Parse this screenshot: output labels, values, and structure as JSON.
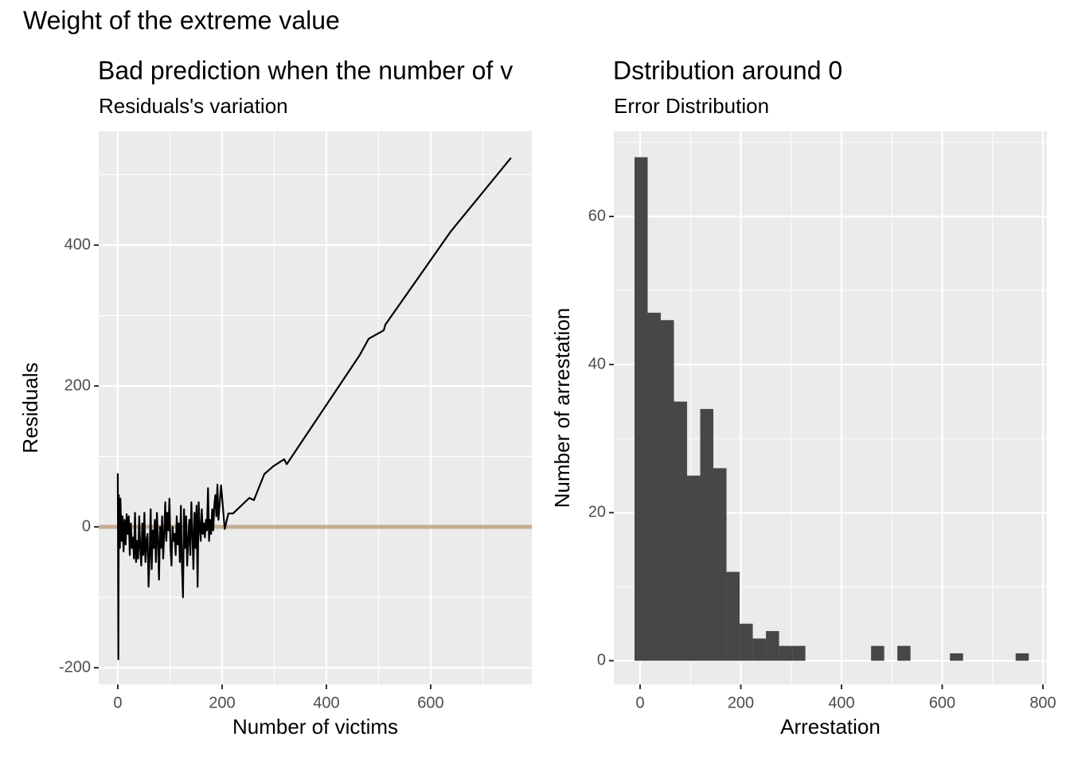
{
  "title": "Weight of the extreme value",
  "chart_data": [
    {
      "type": "line",
      "title": "Bad prediction when the number of v",
      "subtitle": "Residuals's variation",
      "x_label": "Number of victims",
      "y_label": "Residuals",
      "x": [
        0,
        1,
        2,
        4,
        5,
        7,
        9,
        11,
        13,
        15,
        17,
        19,
        21,
        23,
        25,
        27,
        29,
        31,
        33,
        35,
        37,
        39,
        41,
        43,
        45,
        47,
        49,
        51,
        53,
        55,
        57,
        59,
        61,
        63,
        65,
        67,
        69,
        71,
        73,
        75,
        77,
        79,
        81,
        83,
        85,
        87,
        89,
        91,
        93,
        95,
        97,
        99,
        101,
        103,
        105,
        107,
        109,
        111,
        113,
        115,
        117,
        119,
        121,
        123,
        125,
        127,
        129,
        131,
        133,
        135,
        137,
        139,
        141,
        143,
        145,
        147,
        149,
        151,
        153,
        155,
        157,
        159,
        161,
        163,
        165,
        167,
        169,
        171,
        173,
        175,
        177,
        179,
        181,
        183,
        185,
        187,
        189,
        191,
        193,
        198,
        205,
        212,
        221,
        252,
        261,
        281,
        298,
        319,
        324,
        464,
        481,
        510,
        513,
        638,
        754
      ],
      "values": [
        76,
        -188,
        45,
        -30,
        40,
        -20,
        15,
        -35,
        10,
        -25,
        18,
        -10,
        15,
        -40,
        5,
        -30,
        -15,
        -45,
        20,
        -50,
        -20,
        -45,
        15,
        -30,
        -55,
        5,
        -40,
        20,
        -50,
        -20,
        -10,
        -85,
        -40,
        25,
        -60,
        -5,
        -30,
        10,
        -50,
        20,
        -20,
        -75,
        0,
        -30,
        15,
        -45,
        -10,
        35,
        -20,
        20,
        -5,
        40,
        -30,
        -55,
        0,
        -20,
        -10,
        -40,
        15,
        -25,
        5,
        -50,
        30,
        -55,
        -100,
        25,
        -30,
        15,
        -55,
        -20,
        10,
        -40,
        35,
        -10,
        -60,
        20,
        -30,
        30,
        -85,
        35,
        0,
        -20,
        25,
        -10,
        5,
        -15,
        10,
        -5,
        55,
        -20,
        10,
        -10,
        25,
        -5,
        30,
        45,
        15,
        60,
        10,
        59,
        -3,
        19,
        19,
        41,
        38,
        75,
        86,
        96,
        89,
        244,
        267,
        279,
        287,
        419,
        524
      ],
      "color": "#000000",
      "hline": 0,
      "hline_color": "#c4ae93",
      "xlim": [
        -36.6,
        793.9
      ],
      "ylim": [
        -223.7,
        561.6
      ],
      "xticks": [
        0,
        200,
        400,
        600
      ],
      "yticks": [
        -200,
        0,
        200,
        400
      ],
      "grid": true
    },
    {
      "type": "histogram",
      "title": "Dstribution around 0",
      "subtitle": "Error Distribution",
      "x_label": "Arrestation",
      "y_label": "Number of arrestation",
      "bins": [
        -11.1,
        15,
        41.1,
        67.2,
        93.3,
        119.4,
        145.5,
        171.6,
        197.7,
        223.8,
        249.9,
        276,
        302.1,
        328.2,
        354.3,
        380.4,
        406.5,
        432.6,
        458.7,
        484.8,
        510.9,
        537,
        563.1,
        589.2,
        615.3,
        641.4,
        667.5,
        693.6,
        719.7,
        745.8,
        771.9
      ],
      "values": [
        68,
        47,
        46,
        35,
        25,
        34,
        26,
        12,
        5,
        3,
        4,
        2,
        2,
        0,
        0,
        0,
        0,
        0,
        2,
        0,
        2,
        0,
        0,
        0,
        1,
        0,
        0,
        0,
        0,
        1
      ],
      "color": "#474747",
      "xlim": [
        -52.2,
        807.9
      ],
      "ylim": [
        -3.2,
        71.5
      ],
      "xticks": [
        0,
        200,
        400,
        600,
        800
      ],
      "yticks": [
        0,
        20,
        40,
        60
      ],
      "grid": true
    }
  ]
}
